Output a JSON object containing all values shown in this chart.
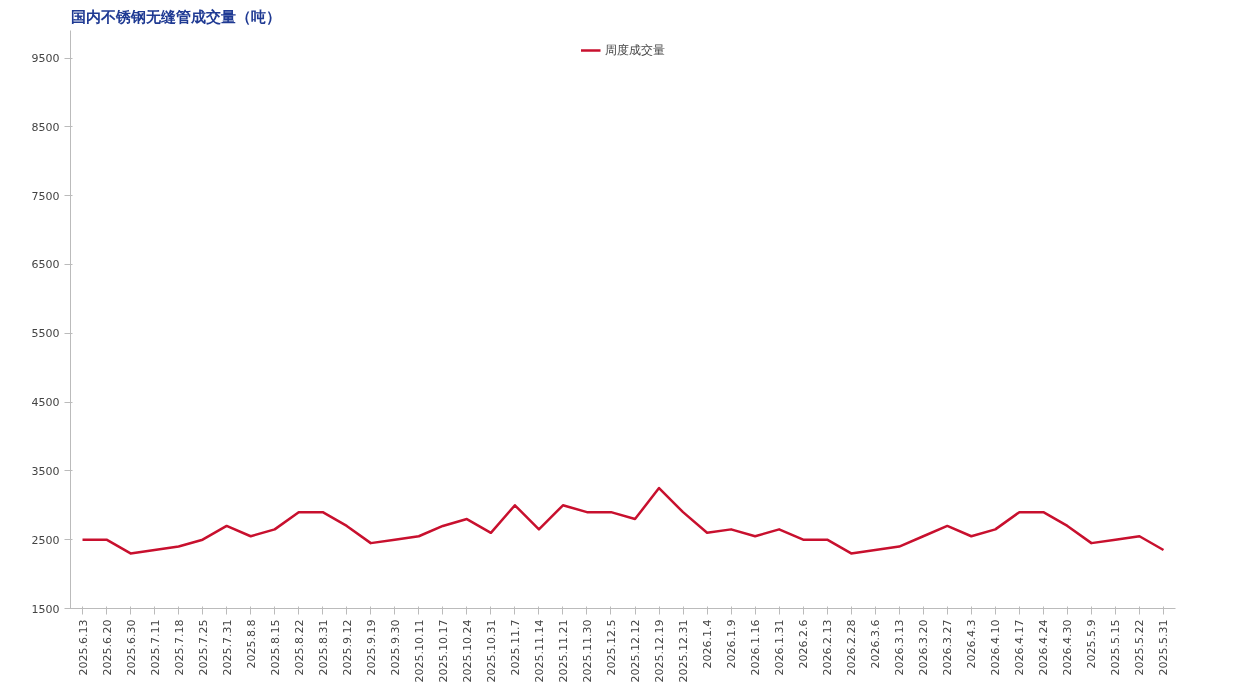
{
  "chart_data": {
    "type": "line",
    "title": "国内不锈钢无缝管成交量（吨）",
    "categories": [
      "2025.6.13",
      "2025.6.20",
      "2025.6.30",
      "2025.7.11",
      "2025.7.18",
      "2025.7.25",
      "2025.7.31",
      "2025.8.8",
      "2025.8.15",
      "2025.8.22",
      "2025.8.31",
      "2025.9.12",
      "2025.9.19",
      "2025.9.30",
      "2025.10.11",
      "2025.10.17",
      "2025.10.24",
      "2025.10.31",
      "2025.11.7",
      "2025.11.14",
      "2025.11.21",
      "2025.11.30",
      "2025.12.5",
      "2025.12.12",
      "2025.12.19",
      "2025.12.31",
      "2026.1.4",
      "2026.1.9",
      "2026.1.16",
      "2026.1.31",
      "2026.2.6",
      "2026.2.13",
      "2026.2.28",
      "2026.3.6",
      "2026.3.13",
      "2026.3.20",
      "2026.3.27",
      "2026.4.3",
      "2026.4.10",
      "2026.4.17",
      "2026.4.24",
      "2026.4.30",
      "2025.5.9",
      "2025.5.15",
      "2025.5.22",
      "2025.5.31"
    ],
    "series": [
      {
        "name": "周度成交量",
        "color": "#c8102e",
        "values": [
          2500,
          2500,
          2300,
          2350,
          2400,
          2500,
          2700,
          2550,
          2650,
          2900,
          2900,
          2700,
          2450,
          2500,
          2550,
          2700,
          2800,
          2600,
          3000,
          2650,
          3000,
          2900,
          2900,
          2800,
          3250,
          2900,
          2600,
          2650,
          2550,
          2650,
          2500,
          2500,
          2300,
          2350,
          2400,
          2550,
          2700,
          2550,
          2650,
          2900,
          2900,
          2700,
          2450,
          2500,
          2550,
          2350
        ]
      }
    ],
    "ylim": [
      1500,
      9900
    ],
    "yticks": [
      1500,
      2500,
      3500,
      4500,
      5500,
      6500,
      7500,
      8500,
      9500
    ],
    "grid": false,
    "legend": "top",
    "marker": "none",
    "line_style": "solid"
  }
}
